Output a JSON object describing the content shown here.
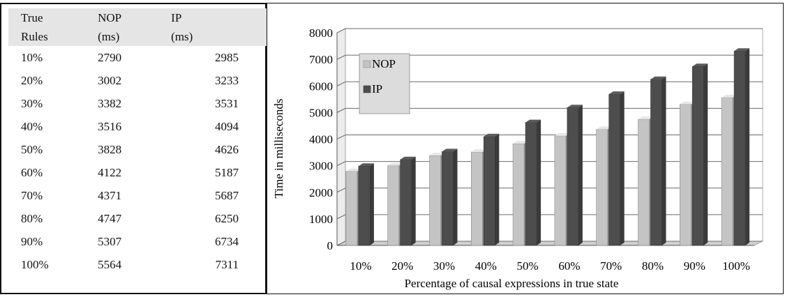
{
  "table": {
    "headers": [
      {
        "line1": "True",
        "line2": "Rules"
      },
      {
        "line1": "NOP",
        "line2": "(ms)"
      },
      {
        "line1": "IP",
        "line2": "(ms)"
      }
    ],
    "rows": [
      [
        "10%",
        "2790",
        "2985"
      ],
      [
        "20%",
        "3002",
        "3233"
      ],
      [
        "30%",
        "3382",
        "3531"
      ],
      [
        "40%",
        "3516",
        "4094"
      ],
      [
        "50%",
        "3828",
        "4626"
      ],
      [
        "60%",
        "4122",
        "5187"
      ],
      [
        "70%",
        "4371",
        "5687"
      ],
      [
        "80%",
        "4747",
        "6250"
      ],
      [
        "90%",
        "5307",
        "6734"
      ],
      [
        "100%",
        "5564",
        "7311"
      ]
    ]
  },
  "chart_data": {
    "type": "bar",
    "categories": [
      "10%",
      "20%",
      "30%",
      "40%",
      "50%",
      "60%",
      "70%",
      "80%",
      "90%",
      "100%"
    ],
    "series": [
      {
        "name": "NOP",
        "values": [
          2790,
          3002,
          3382,
          3516,
          3828,
          4122,
          4371,
          4747,
          5307,
          5564
        ],
        "color": "#c4c4c4"
      },
      {
        "name": "IP",
        "values": [
          2985,
          3233,
          3531,
          4094,
          4626,
          5187,
          5687,
          6250,
          6734,
          7311
        ],
        "color": "#4d4d4d"
      }
    ],
    "xlabel": "Percentage of causal expressions in true state",
    "ylabel": "Time in milliseconds",
    "ylim": [
      0,
      8000
    ],
    "yticks": [
      0,
      1000,
      2000,
      3000,
      4000,
      5000,
      6000,
      7000,
      8000
    ],
    "grid": true,
    "legend": "top-left",
    "style": "3d-bars"
  }
}
